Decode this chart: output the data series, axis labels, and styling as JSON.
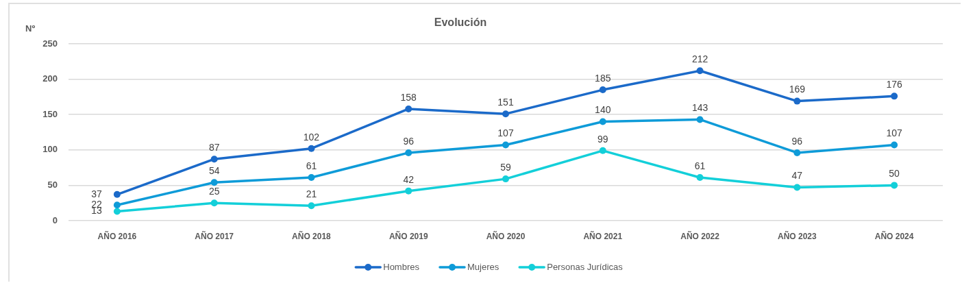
{
  "chart_data": {
    "type": "line",
    "title": "Evolución",
    "ylabel": "Nº",
    "categories": [
      "AÑO 2016",
      "AÑO 2017",
      "AÑO 2018",
      "AÑO 2019",
      "AÑO 2020",
      "AÑO 2021",
      "AÑO 2022",
      "AÑO 2023",
      "AÑO 2024"
    ],
    "series": [
      {
        "name": "Hombres",
        "color": "#1b6ac9",
        "values": [
          37,
          87,
          102,
          158,
          151,
          185,
          212,
          169,
          176
        ]
      },
      {
        "name": "Mujeres",
        "color": "#0e9bd8",
        "values": [
          22,
          54,
          61,
          96,
          107,
          140,
          143,
          96,
          107
        ]
      },
      {
        "name": "Personas Jurídicas",
        "color": "#13cfd9",
        "values": [
          13,
          25,
          21,
          42,
          59,
          99,
          61,
          47,
          50
        ]
      }
    ],
    "ylim": [
      0,
      250
    ],
    "yticks": [
      0,
      50,
      100,
      150,
      200,
      250
    ],
    "grid": "y",
    "legend": "bottom",
    "marker": "circle",
    "line_style": "solid",
    "data_labels": true
  }
}
